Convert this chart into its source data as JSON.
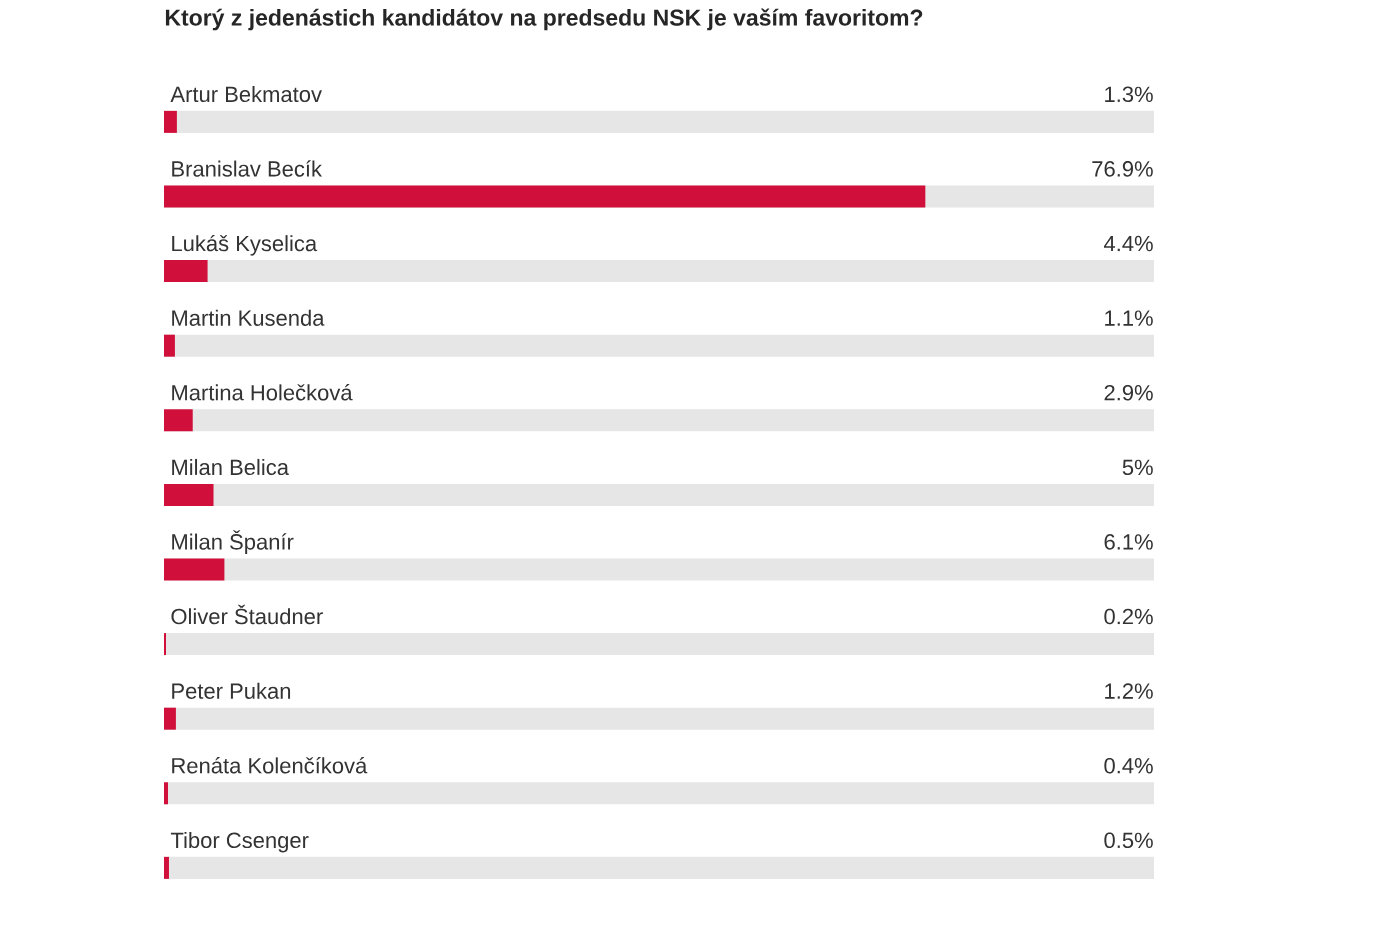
{
  "chart_data": {
    "type": "bar",
    "orientation": "horizontal",
    "title": "Ktorý z jedenástich kandidátov na predsedu NSK je vaším favoritom?",
    "categories": [
      "Artur Bekmatov",
      "Branislav Becík",
      "Lukáš Kyselica",
      "Martin Kusenda",
      "Martina Holečková",
      "Milan Belica",
      "Milan Španír",
      "Oliver Štaudner",
      "Peter Pukan",
      "Renáta Kolenčíková",
      "Tibor Csenger"
    ],
    "values": [
      1.3,
      76.9,
      4.4,
      1.1,
      2.9,
      5,
      6.1,
      0.2,
      1.2,
      0.4,
      0.5
    ],
    "value_labels": [
      "1.3%",
      "76.9%",
      "4.4%",
      "1.1%",
      "2.9%",
      "5%",
      "6.1%",
      "0.2%",
      "1.2%",
      "0.4%",
      "0.5%"
    ],
    "color": "#d0103a",
    "xlim": [
      0,
      100
    ]
  }
}
